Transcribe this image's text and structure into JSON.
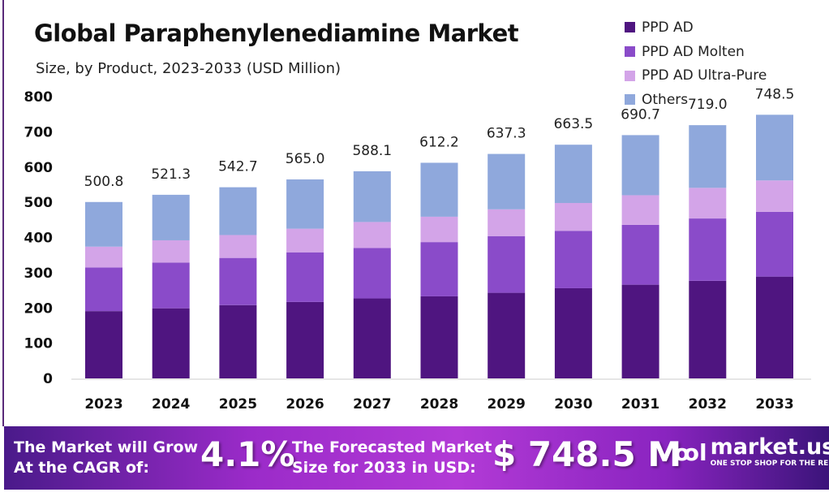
{
  "title": "Global Paraphenylenediamine Market",
  "subtitle": "Size, by Product, 2023-2033 (USD Million)",
  "chart_data": {
    "type": "bar",
    "stacked": true,
    "categories": [
      "2023",
      "2024",
      "2025",
      "2026",
      "2027",
      "2028",
      "2029",
      "2030",
      "2031",
      "2032",
      "2033"
    ],
    "series": [
      {
        "name": "PPD AD",
        "color": "#4f1580",
        "values": [
          191,
          199,
          208,
          217,
          227,
          233,
          243,
          256,
          266,
          277,
          289
        ]
      },
      {
        "name": "PPD AD Molten",
        "color": "#8a4bc9",
        "values": [
          124,
          130,
          134,
          141,
          143,
          154,
          161,
          163,
          170,
          177,
          184
        ]
      },
      {
        "name": "PPD AD Ultra-Pure",
        "color": "#d3a4e8",
        "values": [
          59,
          63,
          65,
          67,
          74,
          72,
          76,
          79,
          84,
          87,
          89
        ]
      },
      {
        "name": "Others",
        "color": "#8fa8dc",
        "values": [
          126.8,
          129.3,
          135.7,
          140,
          144.1,
          153.2,
          157.3,
          165.5,
          170.7,
          178,
          186.5
        ]
      }
    ],
    "totals": [
      "500.8",
      "521.3",
      "542.7",
      "565.0",
      "588.1",
      "612.2",
      "637.3",
      "663.5",
      "690.7",
      "719.0",
      "748.5"
    ],
    "yticks": [
      "0",
      "100",
      "200",
      "300",
      "400",
      "500",
      "600",
      "700",
      "800"
    ],
    "ylim": [
      0,
      800
    ],
    "grid": false,
    "legend": "top-right"
  },
  "footer": {
    "cagr_label_1": "The Market will Grow",
    "cagr_label_2": "At the CAGR of:",
    "cagr_value": "4.1%",
    "size_label_1": "The Forecasted Market",
    "size_label_2": "Size for 2033 in USD:",
    "size_value": "$ 748.5 M",
    "logo_name": "market.us",
    "logo_tagline": "ONE STOP SHOP FOR THE REPORTS"
  }
}
